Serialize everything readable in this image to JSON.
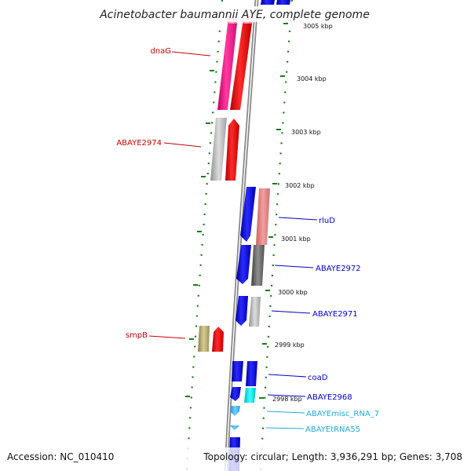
{
  "title": "Acinetobacter baumannii AYE, complete genome",
  "footer": {
    "accession": "Accession: NC_010410",
    "topology": "Topology: circular; Length: 3,936,291 bp; Genes: 3,708"
  },
  "ticks": [
    "3005 kbp",
    "3004 kbp",
    "3003 kbp",
    "3002 kbp",
    "3001 kbp",
    "3000 kbp",
    "2999 kbp",
    "2998 kbp"
  ],
  "genes_left": [
    "dnaG",
    "ABAYE2974",
    "smpB"
  ],
  "genes_right": [
    "rluD",
    "ABAYE2972",
    "ABAYE2971",
    "coaD",
    "ABAYE2968",
    "ABAYEmisc_RNA_7",
    "ABAYEtRNA55"
  ],
  "colors": {
    "label_left": "#cc0000",
    "label_right_blue": "#0000cc",
    "label_right_cyan": "#22aadd",
    "forward_feature": "#ff0000",
    "reverse_feature": "#0000ee",
    "tick_mark": "#1a7a1a"
  }
}
